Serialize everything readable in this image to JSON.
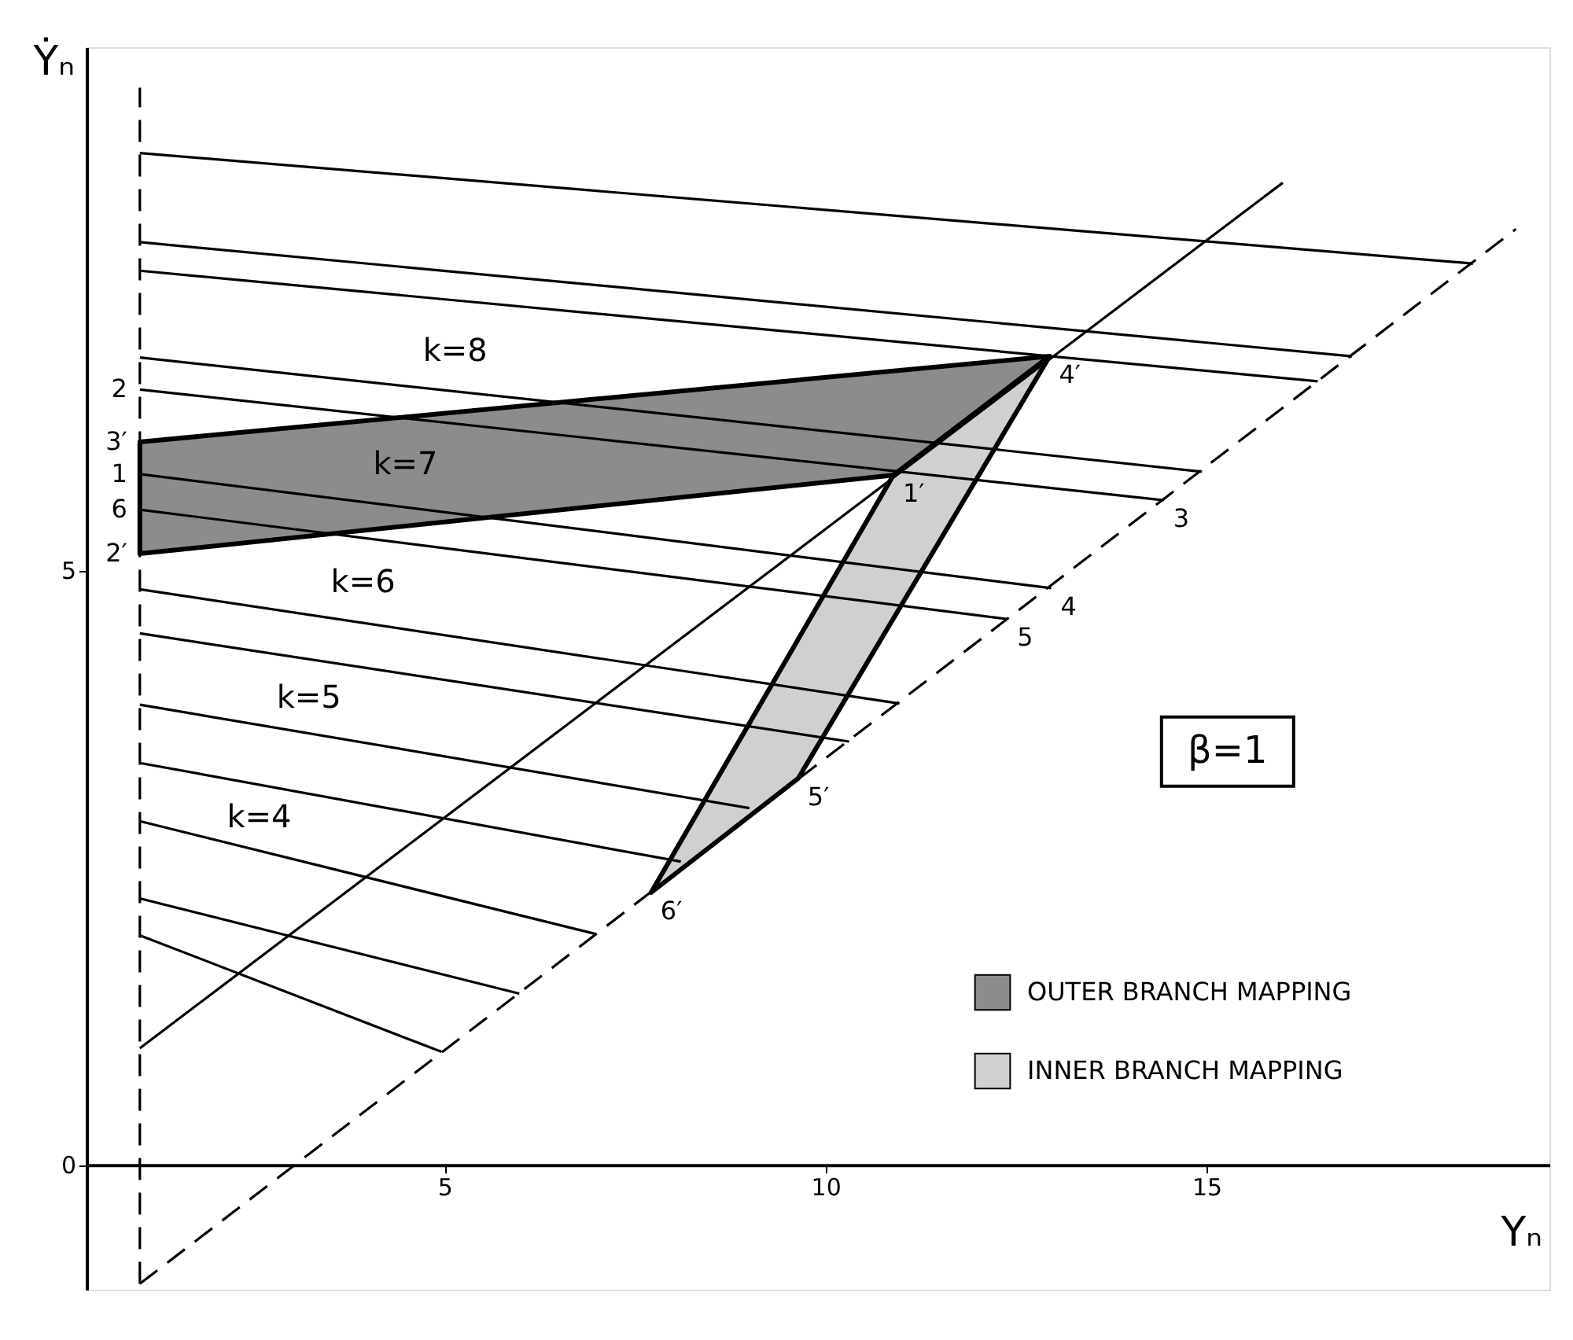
{
  "chart_data": {
    "type": "line",
    "xlabel": "Yₙ",
    "ylabel": "Ẏₙ",
    "xlim": [
      0.3,
      19.5
    ],
    "ylim": [
      -1.05,
      9.4
    ],
    "xticks": [
      5,
      10,
      15
    ],
    "yticks": [
      0,
      5
    ],
    "grid": false,
    "legend": "bottom right",
    "marker": "none",
    "series": [
      {
        "x": [
          1,
          18.5
        ],
        "values": [
          8.51,
          7.58
        ],
        "color": "#000000"
      },
      {
        "x": [
          1,
          16.91
        ],
        "values": [
          7.76,
          6.8
        ],
        "color": "#000000"
      },
      {
        "x": [
          1,
          16.46
        ],
        "values": [
          7.52,
          6.59
        ],
        "color": "#000000"
      },
      {
        "x": [
          1,
          14.94
        ],
        "values": [
          6.79,
          5.83
        ],
        "color": "#000000"
      },
      {
        "x": [
          1,
          14.44
        ],
        "values": [
          6.52,
          5.59
        ],
        "color": "#000000"
      },
      {
        "x": [
          1,
          12.96
        ],
        "values": [
          5.81,
          4.85
        ],
        "color": "#000000"
      },
      {
        "x": [
          1,
          12.39
        ],
        "values": [
          5.51,
          4.59
        ],
        "color": "#000000"
      },
      {
        "x": [
          1,
          10.97
        ],
        "values": [
          4.84,
          3.88
        ],
        "color": "#000000"
      },
      {
        "x": [
          1,
          10.31
        ],
        "values": [
          4.47,
          3.56
        ],
        "color": "#000000"
      },
      {
        "x": [
          1,
          9.0
        ],
        "values": [
          3.87,
          3.0
        ],
        "color": "#000000"
      },
      {
        "x": [
          1,
          8.1
        ],
        "values": [
          3.38,
          2.55
        ],
        "color": "#000000"
      },
      {
        "x": [
          1,
          6.99
        ],
        "values": [
          2.89,
          1.94
        ],
        "color": "#000000"
      },
      {
        "x": [
          1,
          5.98
        ],
        "values": [
          2.24,
          1.44
        ],
        "color": "#000000"
      },
      {
        "x": [
          1,
          4.96
        ],
        "values": [
          1.93,
          0.95
        ],
        "color": "#000000"
      },
      {
        "x": [
          1,
          16
        ],
        "values": [
          0.98,
          8.26
        ],
        "color": "#000000"
      },
      {
        "x": [
          1,
          19.06
        ],
        "values": [
          -1.0,
          7.87
        ],
        "color": "#000000",
        "line_style": "dashed"
      },
      {
        "x": [
          1,
          1
        ],
        "values": [
          -1.0,
          9.06
        ],
        "color": "#000000",
        "line_style": "dashed"
      },
      {
        "type": "area",
        "name": "OUTER BRANCH MAPPING",
        "color": "#8c8c8c",
        "x": [
          1,
          12.94,
          10.89,
          1
        ],
        "values": [
          6.08,
          6.8,
          5.8,
          5.14
        ]
      },
      {
        "type": "area",
        "name": "INNER BRANCH MAPPING",
        "color": "#d0d0d0",
        "x": [
          12.94,
          9.64,
          7.71,
          10.89
        ],
        "values": [
          6.8,
          3.25,
          2.29,
          5.8
        ]
      }
    ],
    "annotations": [
      "k=8",
      "k=7",
      "k=6",
      "k=5",
      "k=4",
      {
        "text": "2",
        "x": 1,
        "y": 6.52
      },
      {
        "text": "3′",
        "x": 1,
        "y": 6.08
      },
      {
        "text": "1",
        "x": 1,
        "y": 5.81
      },
      {
        "text": "6",
        "x": 1,
        "y": 5.51
      },
      {
        "text": "2′",
        "x": 1,
        "y": 5.14
      },
      {
        "text": "3",
        "x": 14.44,
        "y": 5.59
      },
      {
        "text": "4",
        "x": 12.96,
        "y": 4.85
      },
      {
        "text": "5",
        "x": 12.39,
        "y": 4.59
      },
      {
        "text": "4′",
        "x": 12.94,
        "y": 6.8
      },
      {
        "text": "1′",
        "x": 10.89,
        "y": 5.8
      },
      {
        "text": "5′",
        "x": 9.64,
        "y": 3.25
      },
      {
        "text": "6′",
        "x": 7.71,
        "y": 2.29
      },
      "β=1"
    ]
  }
}
